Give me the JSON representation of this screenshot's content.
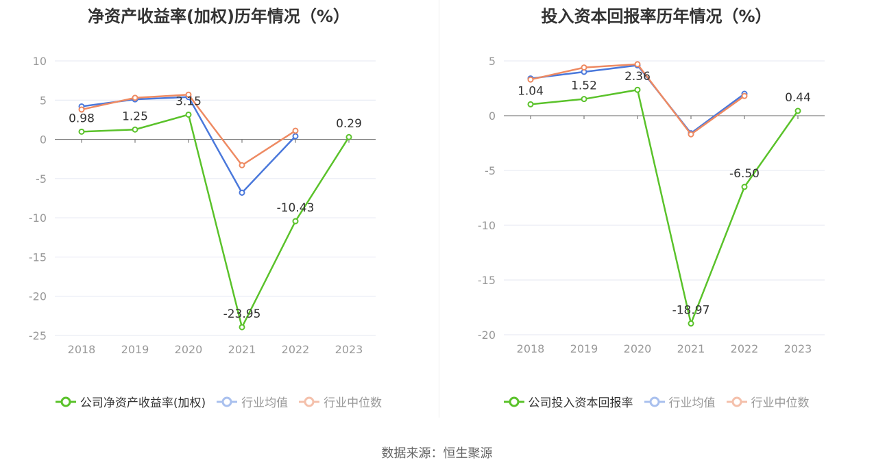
{
  "source": "数据来源：恒生聚源",
  "chart_data": [
    {
      "type": "line",
      "title": "净资产收益率(加权)历年情况（%）",
      "categories": [
        "2018",
        "2019",
        "2020",
        "2021",
        "2022",
        "2023"
      ],
      "ylim": [
        -25,
        10
      ],
      "yticks": [
        10,
        5,
        0,
        -5,
        -10,
        -15,
        -20,
        -25
      ],
      "grid": true,
      "legend_position": "bottom",
      "series": [
        {
          "name": "公司净资产收益率(加权)",
          "color": "#5ac22a",
          "values": [
            0.98,
            1.25,
            3.15,
            -23.95,
            -10.43,
            0.29
          ],
          "labels": [
            "0.98",
            "1.25",
            "3.15",
            "-23.95",
            "-10.43",
            "0.29"
          ]
        },
        {
          "name": "行业均值",
          "color": "#4a78db",
          "values": [
            4.2,
            5.1,
            5.4,
            -6.8,
            0.4,
            null
          ]
        },
        {
          "name": "行业中位数",
          "color": "#ee8a62",
          "values": [
            3.8,
            5.3,
            5.7,
            -3.3,
            1.1,
            null
          ]
        }
      ]
    },
    {
      "type": "line",
      "title": "投入资本回报率历年情况（%）",
      "categories": [
        "2018",
        "2019",
        "2020",
        "2021",
        "2022",
        "2023"
      ],
      "ylim": [
        -20,
        5
      ],
      "yticks": [
        5,
        0,
        -5,
        -10,
        -15,
        -20
      ],
      "grid": true,
      "legend_position": "bottom",
      "series": [
        {
          "name": "公司投入资本回报率",
          "color": "#5ac22a",
          "values": [
            1.04,
            1.52,
            2.36,
            -18.97,
            -6.5,
            0.44
          ],
          "labels": [
            "1.04",
            "1.52",
            "2.36",
            "-18.97",
            "-6.50",
            "0.44"
          ]
        },
        {
          "name": "行业均值",
          "color": "#4a78db",
          "values": [
            3.4,
            4.0,
            4.6,
            -1.6,
            2.0,
            null
          ]
        },
        {
          "name": "行业中位数",
          "color": "#ee8a62",
          "values": [
            3.3,
            4.4,
            4.7,
            -1.7,
            1.8,
            null
          ]
        }
      ]
    }
  ]
}
